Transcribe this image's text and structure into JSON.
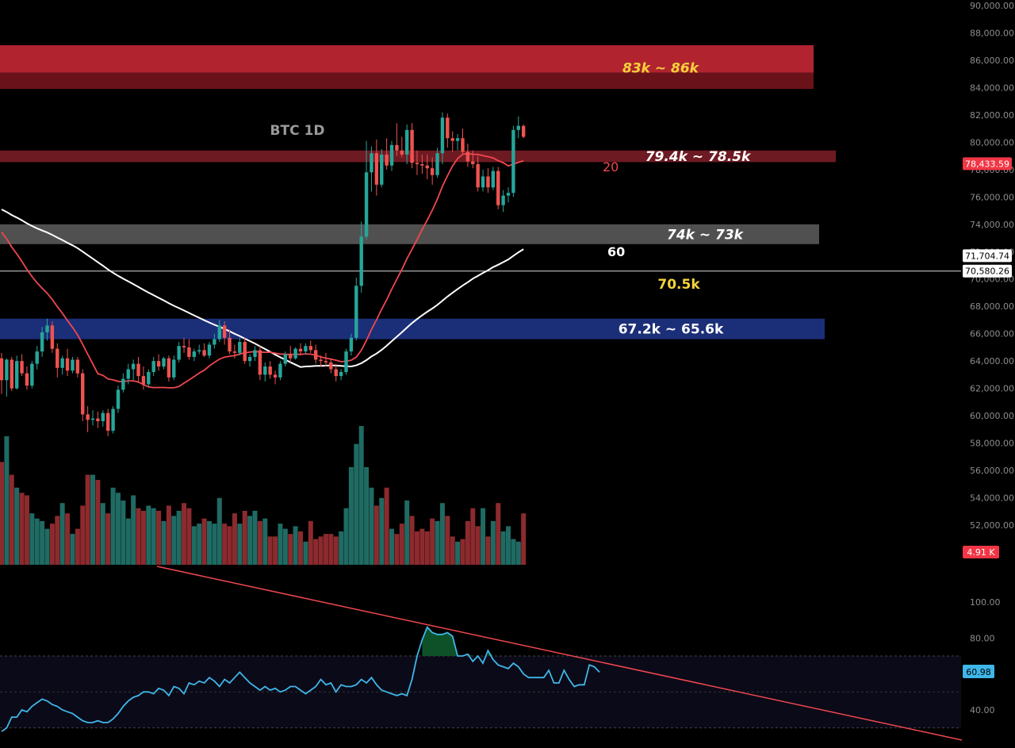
{
  "chart_data": {
    "type": "candlestick",
    "title": "BTC 1D",
    "price_axis": {
      "ylim": [
        50000,
        90000
      ],
      "ticks": [
        90000,
        88000,
        86000,
        84000,
        82000,
        80000,
        78000,
        76000,
        74000,
        72000,
        70000,
        68000,
        66000,
        64000,
        62000,
        60000,
        58000,
        56000,
        54000,
        52000
      ],
      "tick_labels": [
        "90,000.00",
        "88,000.00",
        "86,000.00",
        "84,000.00",
        "82,000.00",
        "80,000.00",
        "78,000.00",
        "76,000.00",
        "74,000.00",
        "72,000.00",
        "70,000.00",
        "68,000.00",
        "66,000.00",
        "64,000.00",
        "62,000.00",
        "60,000.00",
        "58,000.00",
        "56,000.00",
        "54,000.00",
        "52,000.00"
      ]
    },
    "zones": [
      {
        "label": "83k ~ 86k",
        "top": 87100,
        "mid": 85100,
        "bottom": 83900,
        "color": "#b0232f",
        "text_color": "#f5d33a",
        "italic": true
      },
      {
        "label": "79.4k ~ 78.5k",
        "top": 79400,
        "bottom": 78550,
        "color": "#6e1a22",
        "text_color": "#ffffff",
        "italic": true
      },
      {
        "label": "74k ~ 73k",
        "top": 74000,
        "bottom": 72550,
        "color": "#505050",
        "text_color": "#ffffff",
        "italic": true
      },
      {
        "label": "67.2k ~ 65.6k",
        "top": 67100,
        "bottom": 65600,
        "color": "#1b2e78",
        "text_color": "#ffffff",
        "italic": false
      }
    ],
    "horizontal_line": {
      "value": 70580.26,
      "label": "70.5k",
      "label_color": "#f5d33a"
    },
    "ma_labels": [
      {
        "name": "20",
        "color": "#f0474f"
      },
      {
        "name": "60",
        "color": "#ffffff"
      }
    ],
    "price_badges": [
      {
        "text": "78,433.59",
        "bg": "#f23645",
        "fg": "#ffffff",
        "value": 78433.59
      },
      {
        "text": "71,704.74",
        "bg": "#ffffff",
        "fg": "#000000",
        "value": 71704.74
      },
      {
        "text": "70,580.26",
        "bg": "#ffffff",
        "fg": "#000000",
        "value": 70580.26
      }
    ],
    "volume_badge": {
      "text": "4.91 K",
      "bg": "#f23645",
      "fg": "#ffffff"
    },
    "rsi": {
      "ylim": [
        25,
        105
      ],
      "ticks": [
        100,
        80,
        40
      ],
      "tick_labels": [
        "100.00",
        "80.00",
        "40.00"
      ],
      "band": [
        70,
        30
      ],
      "midline": 50,
      "last": 60.98,
      "last_label": "60.98",
      "values": [
        28,
        30,
        36,
        36,
        40,
        39,
        42,
        44,
        46,
        45,
        43,
        42,
        40,
        39,
        38,
        36,
        34,
        33,
        33,
        34,
        33,
        33,
        35,
        38,
        42,
        45,
        47,
        48,
        50,
        50,
        49,
        52,
        51,
        48,
        53,
        52,
        49,
        55,
        54,
        56,
        55,
        58,
        56,
        53,
        57,
        55,
        58,
        61,
        58,
        55,
        53,
        51,
        53,
        51,
        52,
        50,
        51,
        53,
        53,
        51,
        49,
        51,
        53,
        57,
        54,
        55,
        50,
        54,
        53,
        53,
        54,
        57,
        55,
        58,
        54,
        51,
        50,
        49,
        48,
        49,
        48,
        57,
        70,
        79,
        86,
        83,
        82,
        82,
        83,
        81,
        70,
        70,
        71,
        67,
        70,
        66,
        73,
        68,
        65,
        64,
        63,
        66,
        64,
        60,
        58,
        58,
        58,
        58,
        62,
        55,
        55,
        62,
        57,
        53,
        54,
        54,
        65,
        64,
        61
      ]
    },
    "candles": [
      {
        "o": 64200,
        "h": 64600,
        "l": 61600,
        "c": 62600
      },
      {
        "o": 62600,
        "h": 64200,
        "l": 61400,
        "c": 64100
      },
      {
        "o": 64100,
        "h": 64300,
        "l": 61800,
        "c": 62000
      },
      {
        "o": 62000,
        "h": 64400,
        "l": 61900,
        "c": 64000
      },
      {
        "o": 64000,
        "h": 64500,
        "l": 62900,
        "c": 63100
      },
      {
        "o": 63100,
        "h": 63600,
        "l": 61900,
        "c": 62200
      },
      {
        "o": 62200,
        "h": 64000,
        "l": 62000,
        "c": 63800
      },
      {
        "o": 63800,
        "h": 65100,
        "l": 63400,
        "c": 64700
      },
      {
        "o": 64700,
        "h": 66500,
        "l": 64300,
        "c": 66100
      },
      {
        "o": 66100,
        "h": 67100,
        "l": 65500,
        "c": 66600
      },
      {
        "o": 66600,
        "h": 66900,
        "l": 64600,
        "c": 64900
      },
      {
        "o": 64900,
        "h": 65300,
        "l": 62800,
        "c": 63500
      },
      {
        "o": 63500,
        "h": 64400,
        "l": 63000,
        "c": 64200
      },
      {
        "o": 64200,
        "h": 64900,
        "l": 62900,
        "c": 63300
      },
      {
        "o": 63300,
        "h": 64300,
        "l": 63100,
        "c": 64100
      },
      {
        "o": 64100,
        "h": 64300,
        "l": 62800,
        "c": 63100
      },
      {
        "o": 63100,
        "h": 63400,
        "l": 59600,
        "c": 60100
      },
      {
        "o": 60100,
        "h": 60700,
        "l": 58800,
        "c": 59700
      },
      {
        "o": 59700,
        "h": 60400,
        "l": 59300,
        "c": 59800
      },
      {
        "o": 59800,
        "h": 60300,
        "l": 59100,
        "c": 59600
      },
      {
        "o": 59600,
        "h": 60400,
        "l": 59200,
        "c": 60200
      },
      {
        "o": 60200,
        "h": 60500,
        "l": 58500,
        "c": 58900
      },
      {
        "o": 58900,
        "h": 60700,
        "l": 58700,
        "c": 60500
      },
      {
        "o": 60500,
        "h": 62200,
        "l": 60200,
        "c": 61900
      },
      {
        "o": 61900,
        "h": 63100,
        "l": 61700,
        "c": 62700
      },
      {
        "o": 62700,
        "h": 63800,
        "l": 62300,
        "c": 63400
      },
      {
        "o": 63400,
        "h": 64100,
        "l": 62600,
        "c": 63800
      },
      {
        "o": 63800,
        "h": 64300,
        "l": 62400,
        "c": 62900
      },
      {
        "o": 62900,
        "h": 63600,
        "l": 61900,
        "c": 62300
      },
      {
        "o": 62300,
        "h": 63400,
        "l": 62100,
        "c": 63200
      },
      {
        "o": 63200,
        "h": 64300,
        "l": 62900,
        "c": 64000
      },
      {
        "o": 64000,
        "h": 64500,
        "l": 63300,
        "c": 63600
      },
      {
        "o": 63600,
        "h": 64300,
        "l": 63400,
        "c": 64200
      },
      {
        "o": 64200,
        "h": 64400,
        "l": 62500,
        "c": 62800
      },
      {
        "o": 62800,
        "h": 64400,
        "l": 62600,
        "c": 64100
      },
      {
        "o": 64100,
        "h": 65400,
        "l": 63900,
        "c": 65100
      },
      {
        "o": 65100,
        "h": 65700,
        "l": 64600,
        "c": 65000
      },
      {
        "o": 65000,
        "h": 65600,
        "l": 64100,
        "c": 64300
      },
      {
        "o": 64300,
        "h": 64900,
        "l": 64000,
        "c": 64700
      },
      {
        "o": 64700,
        "h": 65200,
        "l": 64500,
        "c": 64800
      },
      {
        "o": 64800,
        "h": 65300,
        "l": 64300,
        "c": 64400
      },
      {
        "o": 64400,
        "h": 65400,
        "l": 64200,
        "c": 65200
      },
      {
        "o": 65200,
        "h": 66000,
        "l": 64900,
        "c": 65600
      },
      {
        "o": 65600,
        "h": 67000,
        "l": 65400,
        "c": 66600
      },
      {
        "o": 66600,
        "h": 66900,
        "l": 65200,
        "c": 65700
      },
      {
        "o": 65700,
        "h": 66300,
        "l": 64500,
        "c": 64700
      },
      {
        "o": 64700,
        "h": 65200,
        "l": 64200,
        "c": 64600
      },
      {
        "o": 64600,
        "h": 65700,
        "l": 64400,
        "c": 65400
      },
      {
        "o": 65400,
        "h": 65700,
        "l": 63800,
        "c": 64000
      },
      {
        "o": 64000,
        "h": 64500,
        "l": 63600,
        "c": 64300
      },
      {
        "o": 64300,
        "h": 65100,
        "l": 64000,
        "c": 64800
      },
      {
        "o": 64800,
        "h": 65100,
        "l": 62600,
        "c": 63000
      },
      {
        "o": 63000,
        "h": 63900,
        "l": 62500,
        "c": 63600
      },
      {
        "o": 63600,
        "h": 64000,
        "l": 62700,
        "c": 63000
      },
      {
        "o": 63000,
        "h": 63300,
        "l": 62300,
        "c": 62800
      },
      {
        "o": 62800,
        "h": 64000,
        "l": 62600,
        "c": 63800
      },
      {
        "o": 63800,
        "h": 64700,
        "l": 63600,
        "c": 64500
      },
      {
        "o": 64500,
        "h": 65100,
        "l": 63900,
        "c": 64200
      },
      {
        "o": 64200,
        "h": 65000,
        "l": 64100,
        "c": 64900
      },
      {
        "o": 64900,
        "h": 65300,
        "l": 64400,
        "c": 64700
      },
      {
        "o": 64700,
        "h": 65300,
        "l": 64500,
        "c": 65100
      },
      {
        "o": 65100,
        "h": 65500,
        "l": 64600,
        "c": 64800
      },
      {
        "o": 64800,
        "h": 65200,
        "l": 63800,
        "c": 64100
      },
      {
        "o": 64100,
        "h": 64400,
        "l": 63600,
        "c": 64000
      },
      {
        "o": 64000,
        "h": 64600,
        "l": 63600,
        "c": 63900
      },
      {
        "o": 63900,
        "h": 64200,
        "l": 63100,
        "c": 63400
      },
      {
        "o": 63400,
        "h": 63800,
        "l": 62500,
        "c": 62900
      },
      {
        "o": 62900,
        "h": 63400,
        "l": 62600,
        "c": 63200
      },
      {
        "o": 63200,
        "h": 64900,
        "l": 63000,
        "c": 64700
      },
      {
        "o": 64700,
        "h": 66000,
        "l": 64400,
        "c": 65700
      },
      {
        "o": 65700,
        "h": 70100,
        "l": 65500,
        "c": 69500
      },
      {
        "o": 69500,
        "h": 74200,
        "l": 69000,
        "c": 73100
      },
      {
        "o": 73100,
        "h": 80100,
        "l": 72900,
        "c": 77800
      },
      {
        "o": 77800,
        "h": 79700,
        "l": 76400,
        "c": 79200
      },
      {
        "o": 79200,
        "h": 80200,
        "l": 76100,
        "c": 76900
      },
      {
        "o": 76900,
        "h": 79500,
        "l": 76700,
        "c": 79100
      },
      {
        "o": 79100,
        "h": 80300,
        "l": 78000,
        "c": 78300
      },
      {
        "o": 78300,
        "h": 80100,
        "l": 77900,
        "c": 79800
      },
      {
        "o": 79800,
        "h": 81400,
        "l": 79000,
        "c": 79400
      },
      {
        "o": 79400,
        "h": 80400,
        "l": 78900,
        "c": 79100
      },
      {
        "o": 79100,
        "h": 81300,
        "l": 78400,
        "c": 80900
      },
      {
        "o": 80900,
        "h": 81400,
        "l": 78100,
        "c": 78500
      },
      {
        "o": 78500,
        "h": 79400,
        "l": 77600,
        "c": 78400
      },
      {
        "o": 78400,
        "h": 79100,
        "l": 77700,
        "c": 78300
      },
      {
        "o": 78300,
        "h": 79100,
        "l": 77300,
        "c": 78100
      },
      {
        "o": 78100,
        "h": 78900,
        "l": 76900,
        "c": 77600
      },
      {
        "o": 77600,
        "h": 79600,
        "l": 77400,
        "c": 79200
      },
      {
        "o": 79200,
        "h": 82200,
        "l": 78400,
        "c": 81800
      },
      {
        "o": 81800,
        "h": 82100,
        "l": 79600,
        "c": 80300
      },
      {
        "o": 80300,
        "h": 80800,
        "l": 79300,
        "c": 80100
      },
      {
        "o": 80100,
        "h": 80600,
        "l": 79400,
        "c": 80300
      },
      {
        "o": 80300,
        "h": 81000,
        "l": 79100,
        "c": 79300
      },
      {
        "o": 79300,
        "h": 79900,
        "l": 78200,
        "c": 78600
      },
      {
        "o": 78600,
        "h": 79400,
        "l": 78100,
        "c": 78400
      },
      {
        "o": 78400,
        "h": 79000,
        "l": 76400,
        "c": 76700
      },
      {
        "o": 76700,
        "h": 78000,
        "l": 76400,
        "c": 77500
      },
      {
        "o": 77500,
        "h": 78100,
        "l": 76300,
        "c": 76700
      },
      {
        "o": 76700,
        "h": 78200,
        "l": 76500,
        "c": 77900
      },
      {
        "o": 77900,
        "h": 78200,
        "l": 75100,
        "c": 75400
      },
      {
        "o": 75400,
        "h": 76500,
        "l": 74900,
        "c": 76100
      },
      {
        "o": 76100,
        "h": 76700,
        "l": 75600,
        "c": 76300
      },
      {
        "o": 76300,
        "h": 81200,
        "l": 76000,
        "c": 80900
      },
      {
        "o": 80900,
        "h": 81900,
        "l": 80300,
        "c": 81200
      },
      {
        "o": 81200,
        "h": 81300,
        "l": 80300,
        "c": 80400
      }
    ],
    "volume_ylim": [
      0,
      50000
    ]
  }
}
